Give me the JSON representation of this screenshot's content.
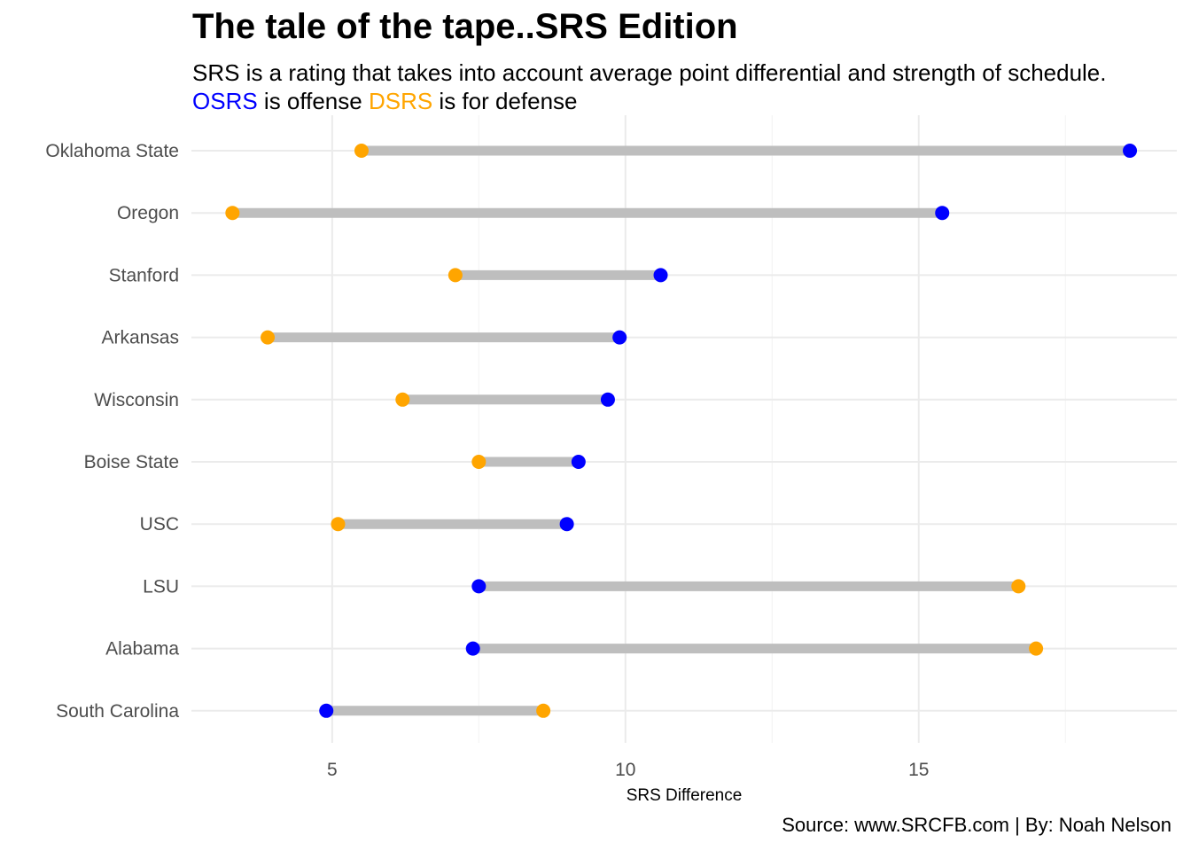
{
  "chart_data": {
    "type": "dumbbell",
    "title": "The tale of the tape..SRS Edition",
    "subtitle_line1": "SRS is a rating that takes into account average point differential and strength of schedule.",
    "subtitle_line2": {
      "osrs_word": "OSRS",
      "middle": " is offense ",
      "dsrs_word": "DSRS",
      "end": " is for defense"
    },
    "xlabel": "SRS Difference",
    "ylabel": "",
    "caption": "Source: www.SRCFB.com | By: Noah Nelson",
    "xlim": [
      2.6,
      19.4
    ],
    "xticks": [
      5,
      10,
      15
    ],
    "grid": true,
    "colors": {
      "osrs": "#0000ff",
      "dsrs": "#ffa500",
      "segment": "#bebebe"
    },
    "series": [
      {
        "name": "OSRS",
        "key": "osrs"
      },
      {
        "name": "DSRS",
        "key": "dsrs"
      }
    ],
    "categories": [
      "Oklahoma State",
      "Oregon",
      "Stanford",
      "Arkansas",
      "Wisconsin",
      "Boise State",
      "USC",
      "LSU",
      "Alabama",
      "South Carolina"
    ],
    "osrs": [
      18.6,
      15.4,
      10.6,
      9.9,
      9.7,
      9.2,
      9.0,
      7.5,
      7.4,
      4.9
    ],
    "dsrs": [
      5.5,
      3.3,
      7.1,
      3.9,
      6.2,
      7.5,
      5.1,
      16.7,
      17.0,
      8.6
    ]
  }
}
